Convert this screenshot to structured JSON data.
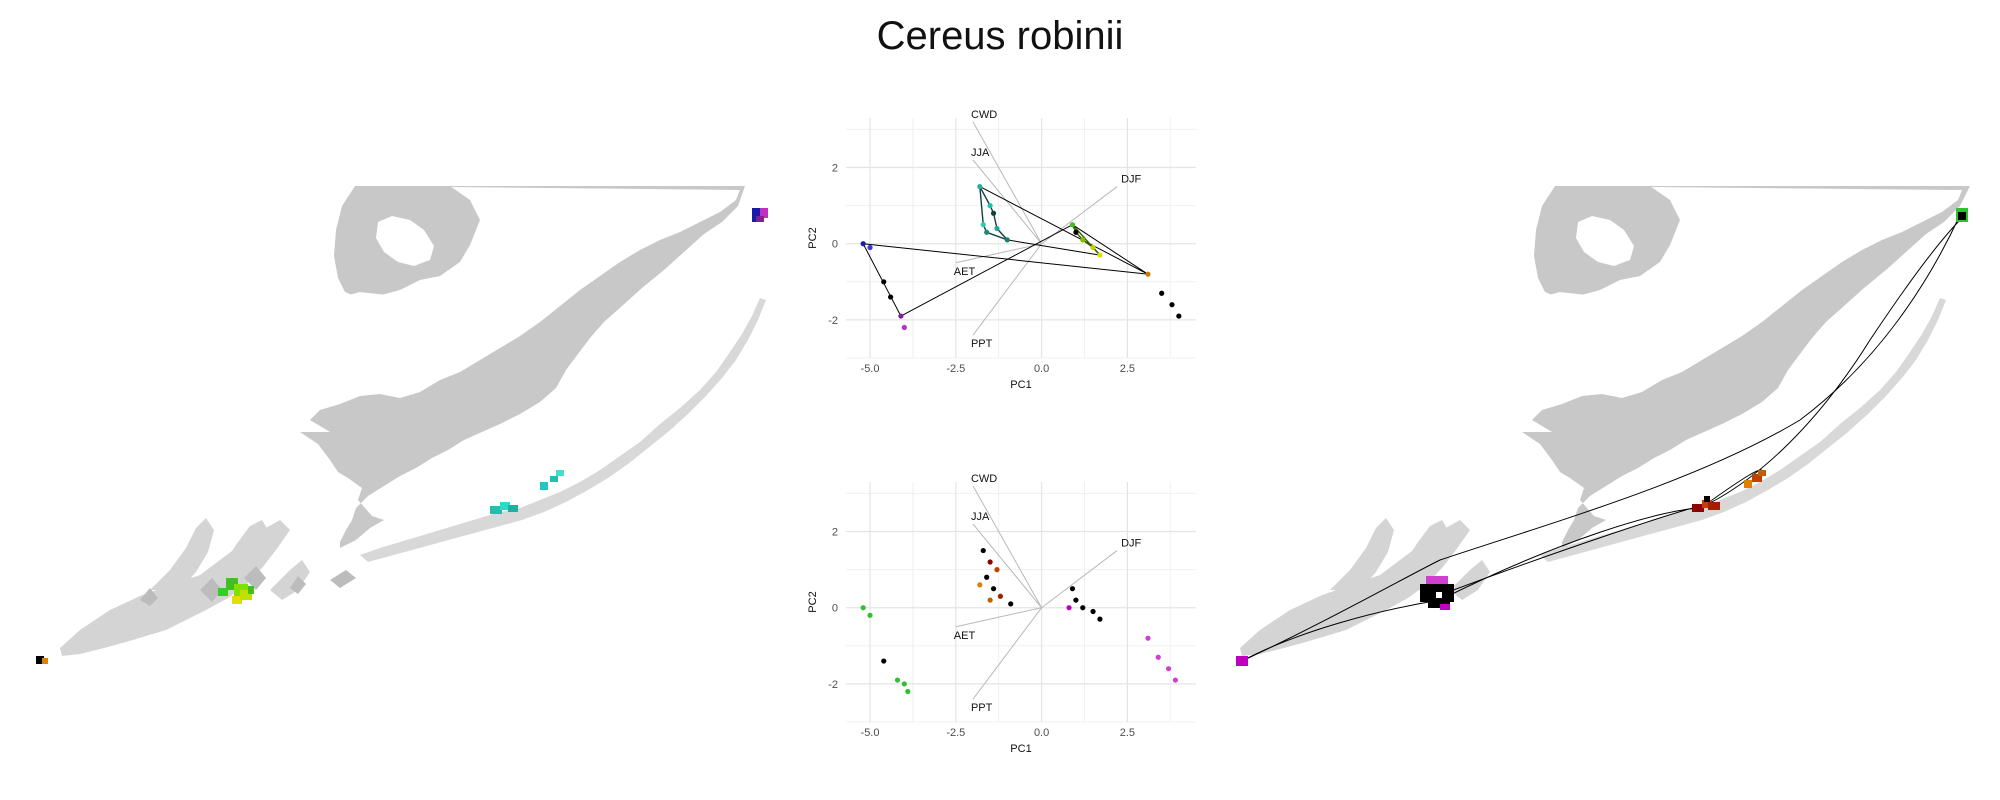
{
  "title": "Cereus robinii",
  "chart_data": [
    {
      "type": "scatter",
      "panel": "top-pca-biplot",
      "xlabel": "PC1",
      "ylabel": "PC2",
      "xlim": [
        -5.7,
        4.5
      ],
      "ylim": [
        -3.0,
        3.3
      ],
      "xticks": [
        "-5.0",
        "-2.5",
        "0.0",
        "2.5"
      ],
      "yticks": [
        "2",
        "0",
        "-2"
      ],
      "xtick_values": [
        -5.0,
        -2.5,
        0.0,
        2.5
      ],
      "ytick_values": [
        2,
        0,
        -2
      ],
      "grid": true,
      "vectors": [
        {
          "label": "CWD",
          "x": -2.0,
          "y": 3.2
        },
        {
          "label": "JJA",
          "x": -2.0,
          "y": 2.2
        },
        {
          "label": "DJF",
          "x": 2.2,
          "y": 1.5
        },
        {
          "label": "AET",
          "x": -2.5,
          "y": -0.5
        },
        {
          "label": "PPT",
          "x": -2.0,
          "y": -2.4
        }
      ],
      "points": [
        {
          "x": -5.2,
          "y": 0.0,
          "color": "#1a1aa8"
        },
        {
          "x": -5.0,
          "y": -0.1,
          "color": "#3a3acc"
        },
        {
          "x": -4.6,
          "y": -1.0,
          "color": "#000000"
        },
        {
          "x": -4.4,
          "y": -1.4,
          "color": "#000000"
        },
        {
          "x": -4.1,
          "y": -1.9,
          "color": "#7a20a0"
        },
        {
          "x": -4.0,
          "y": -2.2,
          "color": "#c030c0"
        },
        {
          "x": -1.8,
          "y": 1.5,
          "color": "#20b0a0"
        },
        {
          "x": -1.5,
          "y": 1.0,
          "color": "#20c0b0"
        },
        {
          "x": -1.4,
          "y": 0.8,
          "color": "#104040"
        },
        {
          "x": -1.7,
          "y": 0.5,
          "color": "#30c8b8"
        },
        {
          "x": -1.3,
          "y": 0.4,
          "color": "#20a898"
        },
        {
          "x": -1.0,
          "y": 0.1,
          "color": "#1a8070"
        },
        {
          "x": -1.6,
          "y": 0.3,
          "color": "#208878"
        },
        {
          "x": 0.9,
          "y": 0.5,
          "color": "#40c020"
        },
        {
          "x": 1.0,
          "y": 0.3,
          "color": "#000000"
        },
        {
          "x": 1.2,
          "y": 0.1,
          "color": "#80c000"
        },
        {
          "x": 1.5,
          "y": -0.1,
          "color": "#c0d000"
        },
        {
          "x": 1.7,
          "y": -0.3,
          "color": "#e0e000"
        },
        {
          "x": 3.1,
          "y": -0.8,
          "color": "#c08000"
        },
        {
          "x": 3.5,
          "y": -1.3,
          "color": "#000000"
        },
        {
          "x": 3.8,
          "y": -1.6,
          "color": "#000000"
        },
        {
          "x": 4.0,
          "y": -1.9,
          "color": "#000000"
        }
      ]
    },
    {
      "type": "scatter",
      "panel": "bottom-pca-biplot",
      "xlabel": "PC1",
      "ylabel": "PC2",
      "xlim": [
        -5.7,
        4.5
      ],
      "ylim": [
        -3.0,
        3.3
      ],
      "xticks": [
        "-5.0",
        "-2.5",
        "0.0",
        "2.5"
      ],
      "yticks": [
        "2",
        "0",
        "-2"
      ],
      "xtick_values": [
        -5.0,
        -2.5,
        0.0,
        2.5
      ],
      "ytick_values": [
        2,
        0,
        -2
      ],
      "grid": true,
      "vectors": [
        {
          "label": "CWD",
          "x": -2.0,
          "y": 3.2
        },
        {
          "label": "JJA",
          "x": -2.0,
          "y": 2.2
        },
        {
          "label": "DJF",
          "x": 2.2,
          "y": 1.5
        },
        {
          "label": "AET",
          "x": -2.5,
          "y": -0.5
        },
        {
          "label": "PPT",
          "x": -2.0,
          "y": -2.4
        }
      ],
      "points": [
        {
          "x": -5.2,
          "y": 0.0,
          "color": "#30c030"
        },
        {
          "x": -5.0,
          "y": -0.2,
          "color": "#30c030"
        },
        {
          "x": -4.6,
          "y": -1.4,
          "color": "#000000"
        },
        {
          "x": -4.2,
          "y": -1.9,
          "color": "#30c030"
        },
        {
          "x": -4.0,
          "y": -2.0,
          "color": "#30c030"
        },
        {
          "x": -3.9,
          "y": -2.2,
          "color": "#30c030"
        },
        {
          "x": -1.7,
          "y": 1.5,
          "color": "#000000"
        },
        {
          "x": -1.5,
          "y": 1.2,
          "color": "#8b0000"
        },
        {
          "x": -1.3,
          "y": 1.0,
          "color": "#c04000"
        },
        {
          "x": -1.6,
          "y": 0.8,
          "color": "#000000"
        },
        {
          "x": -1.8,
          "y": 0.6,
          "color": "#e08000"
        },
        {
          "x": -1.4,
          "y": 0.5,
          "color": "#000000"
        },
        {
          "x": -1.2,
          "y": 0.3,
          "color": "#a02000"
        },
        {
          "x": -1.5,
          "y": 0.2,
          "color": "#c06000"
        },
        {
          "x": -0.9,
          "y": 0.1,
          "color": "#000000"
        },
        {
          "x": 0.9,
          "y": 0.5,
          "color": "#000000"
        },
        {
          "x": 1.0,
          "y": 0.2,
          "color": "#000000"
        },
        {
          "x": 1.2,
          "y": 0.0,
          "color": "#000000"
        },
        {
          "x": 1.5,
          "y": -0.1,
          "color": "#000000"
        },
        {
          "x": 1.7,
          "y": -0.3,
          "color": "#000000"
        },
        {
          "x": 0.8,
          "y": 0.0,
          "color": "#c000c0"
        },
        {
          "x": 3.1,
          "y": -0.8,
          "color": "#d040d0"
        },
        {
          "x": 3.4,
          "y": -1.3,
          "color": "#d040d0"
        },
        {
          "x": 3.7,
          "y": -1.6,
          "color": "#d040d0"
        },
        {
          "x": 3.9,
          "y": -1.9,
          "color": "#d040d0"
        }
      ]
    }
  ]
}
